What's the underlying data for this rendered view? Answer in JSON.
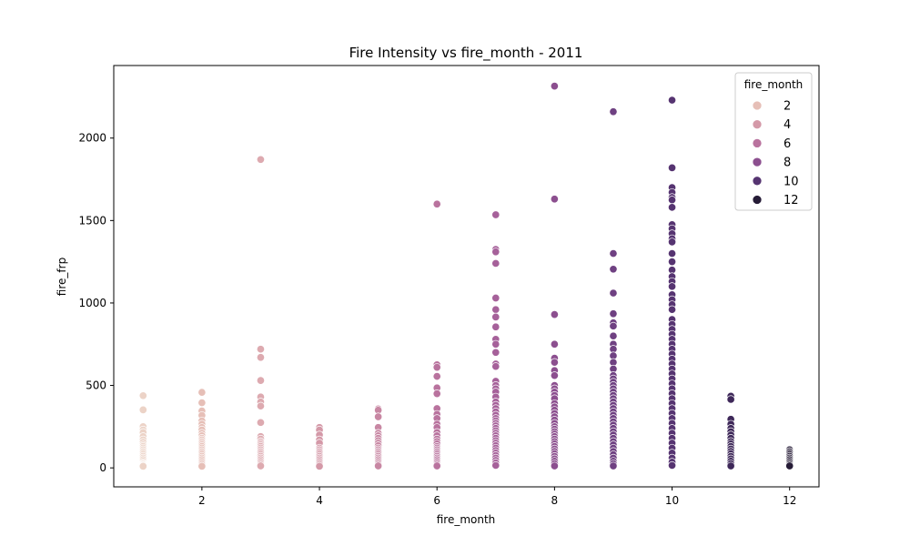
{
  "chart_data": {
    "type": "scatter",
    "title": "Fire Intensity vs fire_month - 2011",
    "xlabel": "fire_month",
    "ylabel": "fire_frp",
    "xlim": [
      0.5,
      12.5
    ],
    "ylim": [
      -115,
      2440
    ],
    "xticks": [
      2,
      4,
      6,
      8,
      10,
      12
    ],
    "yticks": [
      0,
      500,
      1000,
      1500,
      2000
    ],
    "grid": false,
    "legend": {
      "title": "fire_month",
      "placement": "top-right",
      "entries": [
        {
          "label": "2",
          "value": 2
        },
        {
          "label": "4",
          "value": 4
        },
        {
          "label": "6",
          "value": 6
        },
        {
          "label": "8",
          "value": 8
        },
        {
          "label": "10",
          "value": 10
        },
        {
          "label": "12",
          "value": 12
        }
      ]
    },
    "hue_colors": {
      "1": "#ecd3c7",
      "2": "#e6bfb7",
      "3": "#ddaab0",
      "4": "#d499a8",
      "5": "#c887a3",
      "6": "#b9739e",
      "7": "#a6619a",
      "8": "#8c4f8f",
      "9": "#6f4182",
      "10": "#563471",
      "11": "#3e2859",
      "12": "#261c37"
    },
    "points": [
      {
        "month": 1,
        "frp": [
          438,
          352,
          250,
          230,
          215,
          190,
          170,
          155,
          140,
          130,
          120,
          110,
          100,
          90,
          80,
          70,
          60,
          50,
          40,
          30,
          25,
          20,
          15,
          10
        ]
      },
      {
        "month": 2,
        "frp": [
          458,
          395,
          345,
          318,
          285,
          265,
          245,
          230,
          210,
          195,
          180,
          170,
          160,
          150,
          140,
          130,
          120,
          110,
          100,
          90,
          80,
          70,
          60,
          50,
          40,
          30,
          20,
          10
        ]
      },
      {
        "month": 3,
        "frp": [
          1870,
          720,
          670,
          530,
          430,
          400,
          375,
          275,
          190,
          175,
          160,
          150,
          140,
          130,
          120,
          110,
          100,
          90,
          80,
          70,
          60,
          50,
          40,
          30,
          20,
          12
        ]
      },
      {
        "month": 4,
        "frp": [
          245,
          230,
          200,
          170,
          150,
          120,
          110,
          100,
          90,
          80,
          70,
          60,
          50,
          40,
          30,
          20,
          10
        ]
      },
      {
        "month": 5,
        "frp": [
          358,
          350,
          310,
          245,
          210,
          195,
          180,
          165,
          150,
          135,
          120,
          110,
          100,
          90,
          80,
          70,
          60,
          50,
          40,
          30,
          20,
          12
        ]
      },
      {
        "month": 6,
        "frp": [
          1600,
          625,
          610,
          555,
          485,
          450,
          360,
          325,
          300,
          265,
          245,
          215,
          195,
          175,
          160,
          145,
          130,
          120,
          110,
          100,
          90,
          80,
          70,
          60,
          50,
          40,
          30,
          20,
          12
        ]
      },
      {
        "month": 7,
        "frp": [
          1535,
          1325,
          1310,
          1240,
          1030,
          960,
          915,
          855,
          780,
          750,
          700,
          630,
          615,
          525,
          500,
          480,
          460,
          430,
          400,
          380,
          360,
          340,
          320,
          300,
          285,
          270,
          255,
          240,
          225,
          210,
          195,
          180,
          165,
          150,
          135,
          120,
          105,
          90,
          75,
          60,
          45,
          30,
          15
        ]
      },
      {
        "month": 8,
        "frp": [
          2315,
          1630,
          930,
          750,
          665,
          640,
          590,
          560,
          500,
          480,
          460,
          440,
          420,
          390,
          370,
          350,
          330,
          310,
          290,
          270,
          250,
          235,
          220,
          205,
          190,
          175,
          160,
          145,
          130,
          115,
          100,
          85,
          70,
          55,
          40,
          25,
          12
        ]
      },
      {
        "month": 9,
        "frp": [
          2160,
          1300,
          1205,
          1060,
          935,
          880,
          860,
          800,
          750,
          720,
          680,
          640,
          600,
          560,
          540,
          520,
          500,
          480,
          460,
          440,
          420,
          400,
          380,
          360,
          340,
          320,
          300,
          280,
          260,
          240,
          220,
          200,
          180,
          160,
          140,
          120,
          100,
          80,
          60,
          40,
          25,
          12
        ]
      },
      {
        "month": 10,
        "frp": [
          2230,
          1820,
          1700,
          1670,
          1640,
          1625,
          1580,
          1475,
          1450,
          1420,
          1390,
          1370,
          1300,
          1250,
          1200,
          1160,
          1130,
          1100,
          1050,
          1020,
          990,
          960,
          900,
          870,
          840,
          810,
          780,
          750,
          720,
          690,
          660,
          630,
          600,
          570,
          540,
          510,
          480,
          450,
          420,
          390,
          360,
          330,
          300,
          270,
          240,
          210,
          180,
          150,
          120,
          90,
          60,
          35,
          15
        ]
      },
      {
        "month": 11,
        "frp": [
          435,
          415,
          295,
          265,
          240,
          220,
          200,
          180,
          160,
          145,
          130,
          115,
          100,
          85,
          70,
          55,
          40,
          25,
          12
        ]
      },
      {
        "month": 12,
        "frp": [
          110,
          100,
          90,
          80,
          70,
          60,
          50,
          40,
          30,
          20,
          12
        ]
      }
    ]
  }
}
